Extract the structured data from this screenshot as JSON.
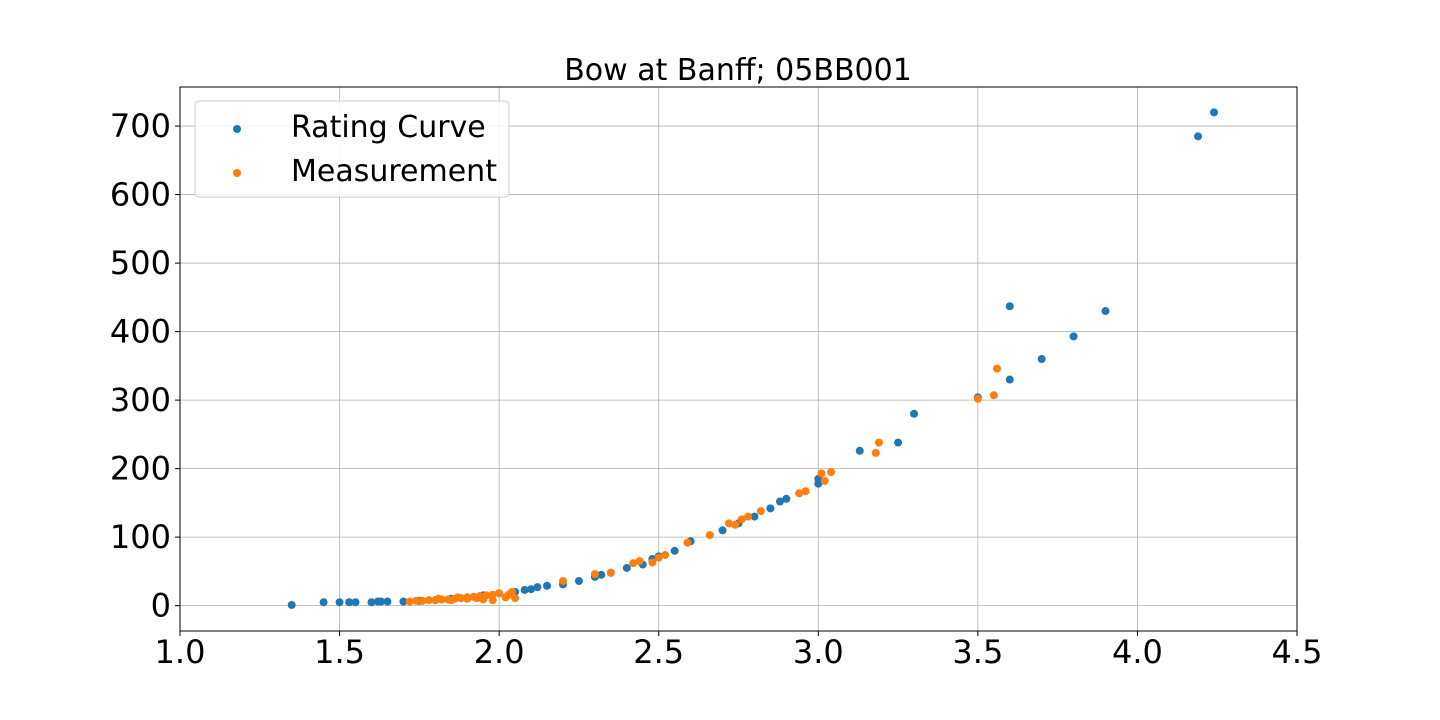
{
  "chart_data": {
    "type": "scatter",
    "title": "Bow at Banff; 05BB001",
    "xlabel": "",
    "ylabel": "",
    "xlim": [
      1.0,
      4.5
    ],
    "ylim": [
      -37,
      757
    ],
    "xticks": [
      "1.0",
      "1.5",
      "2.0",
      "2.5",
      "3.0",
      "3.5",
      "4.0",
      "4.5"
    ],
    "yticks": [
      "0",
      "100",
      "200",
      "300",
      "400",
      "500",
      "600",
      "700"
    ],
    "grid": true,
    "legend_position": "upper-left",
    "series": [
      {
        "name": "Rating Curve",
        "color": "#1f77b4",
        "points": [
          [
            1.35,
            1
          ],
          [
            1.45,
            5
          ],
          [
            1.5,
            5
          ],
          [
            1.53,
            5
          ],
          [
            1.55,
            5
          ],
          [
            1.6,
            5
          ],
          [
            1.62,
            6
          ],
          [
            1.63,
            6
          ],
          [
            1.65,
            6
          ],
          [
            1.7,
            6
          ],
          [
            1.75,
            7
          ],
          [
            1.8,
            8
          ],
          [
            1.85,
            10
          ],
          [
            1.9,
            12
          ],
          [
            1.95,
            15
          ],
          [
            2.0,
            18
          ],
          [
            2.05,
            20
          ],
          [
            2.08,
            23
          ],
          [
            2.1,
            24
          ],
          [
            2.12,
            27
          ],
          [
            2.15,
            29
          ],
          [
            2.2,
            31
          ],
          [
            2.25,
            36
          ],
          [
            2.3,
            42
          ],
          [
            2.32,
            45
          ],
          [
            2.35,
            48
          ],
          [
            2.4,
            55
          ],
          [
            2.45,
            60
          ],
          [
            2.48,
            68
          ],
          [
            2.5,
            72
          ],
          [
            2.55,
            80
          ],
          [
            2.6,
            94
          ],
          [
            2.7,
            110
          ],
          [
            2.75,
            120
          ],
          [
            2.8,
            130
          ],
          [
            2.85,
            142
          ],
          [
            2.88,
            152
          ],
          [
            2.9,
            156
          ],
          [
            3.0,
            178
          ],
          [
            3.0,
            185
          ],
          [
            3.13,
            226
          ],
          [
            3.25,
            238
          ],
          [
            3.3,
            280
          ],
          [
            3.5,
            304
          ],
          [
            3.6,
            330
          ],
          [
            3.6,
            437
          ],
          [
            3.7,
            360
          ],
          [
            3.8,
            393
          ],
          [
            3.9,
            430
          ],
          [
            4.19,
            685
          ],
          [
            4.24,
            720
          ]
        ]
      },
      {
        "name": "Measurement",
        "color": "#ff7f0e",
        "points": [
          [
            1.72,
            6
          ],
          [
            1.74,
            7
          ],
          [
            1.76,
            7
          ],
          [
            1.78,
            8
          ],
          [
            1.8,
            8
          ],
          [
            1.82,
            9
          ],
          [
            1.84,
            9
          ],
          [
            1.86,
            10
          ],
          [
            1.88,
            11
          ],
          [
            1.9,
            12
          ],
          [
            1.92,
            13
          ],
          [
            1.94,
            14
          ],
          [
            1.96,
            15
          ],
          [
            1.98,
            16
          ],
          [
            2.0,
            18
          ],
          [
            1.85,
            8
          ],
          [
            1.9,
            10
          ],
          [
            1.95,
            9
          ],
          [
            1.98,
            8
          ],
          [
            2.02,
            12
          ],
          [
            2.04,
            20
          ],
          [
            2.05,
            11
          ],
          [
            2.03,
            16
          ],
          [
            1.81,
            10
          ],
          [
            1.87,
            12
          ],
          [
            1.93,
            11
          ],
          [
            2.2,
            36
          ],
          [
            2.3,
            46
          ],
          [
            2.35,
            48
          ],
          [
            2.42,
            62
          ],
          [
            2.44,
            65
          ],
          [
            2.48,
            63
          ],
          [
            2.5,
            70
          ],
          [
            2.52,
            74
          ],
          [
            2.59,
            92
          ],
          [
            2.66,
            103
          ],
          [
            2.72,
            120
          ],
          [
            2.74,
            118
          ],
          [
            2.76,
            126
          ],
          [
            2.78,
            130
          ],
          [
            2.82,
            138
          ],
          [
            2.94,
            164
          ],
          [
            2.96,
            167
          ],
          [
            3.01,
            193
          ],
          [
            3.02,
            182
          ],
          [
            3.04,
            195
          ],
          [
            3.18,
            223
          ],
          [
            3.19,
            238
          ],
          [
            3.5,
            302
          ],
          [
            3.55,
            307
          ],
          [
            3.56,
            346
          ]
        ]
      }
    ]
  }
}
